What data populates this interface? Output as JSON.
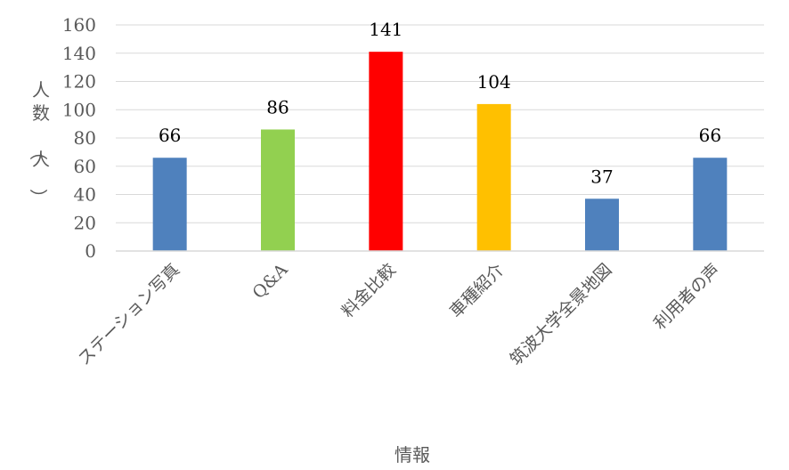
{
  "chart_data": {
    "type": "bar",
    "categories": [
      "ステーション写真",
      "Q&A",
      "料金比較",
      "車種紹介",
      "筑波大学全景地図",
      "利用者の声"
    ],
    "values": [
      66,
      86,
      141,
      104,
      37,
      66
    ],
    "colors": [
      "#4f81bd",
      "#92d050",
      "#ff0000",
      "#ffc000",
      "#4f81bd",
      "#4f81bd"
    ],
    "xlabel": "情報",
    "ylabel": "人数（人）",
    "ylim": [
      0,
      160
    ],
    "yticks": [
      0,
      20,
      40,
      60,
      80,
      100,
      120,
      140,
      160
    ],
    "grid": true,
    "data_labels": true
  }
}
